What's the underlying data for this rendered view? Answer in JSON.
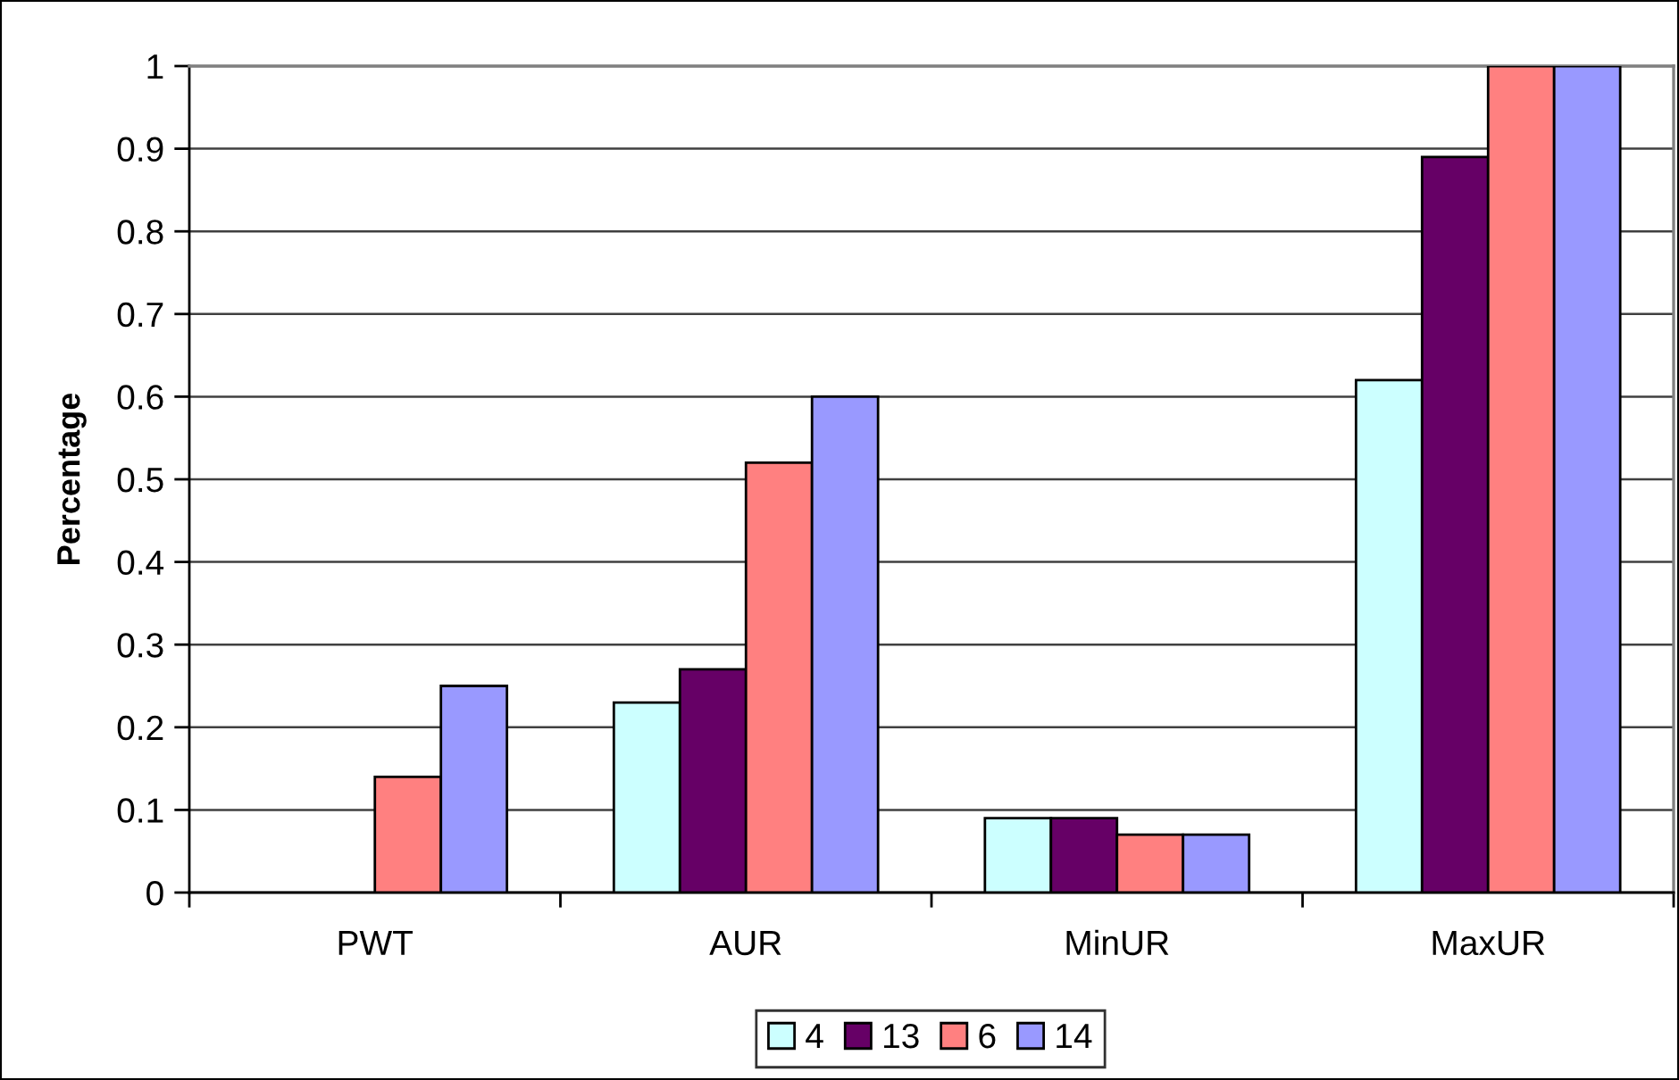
{
  "chart_data": {
    "type": "bar",
    "ylabel": "Percentage",
    "categories": [
      "PWT",
      "AUR",
      "MinUR",
      "MaxUR"
    ],
    "series": [
      {
        "name": "4",
        "color": "#ccffff",
        "values": [
          null,
          0.23,
          0.09,
          0.62
        ]
      },
      {
        "name": "13",
        "color": "#660066",
        "values": [
          null,
          0.27,
          0.09,
          0.89
        ]
      },
      {
        "name": "6",
        "color": "#ff8080",
        "values": [
          0.14,
          0.52,
          0.07,
          1.0
        ]
      },
      {
        "name": "14",
        "color": "#9999ff",
        "values": [
          0.25,
          0.6,
          0.07,
          1.0
        ]
      }
    ],
    "ylim": [
      0,
      1
    ],
    "yticks": [
      0,
      0.1,
      0.2,
      0.3,
      0.4,
      0.5,
      0.6,
      0.7,
      0.8,
      0.9,
      1
    ],
    "grid": "y",
    "legend": "bottom"
  }
}
